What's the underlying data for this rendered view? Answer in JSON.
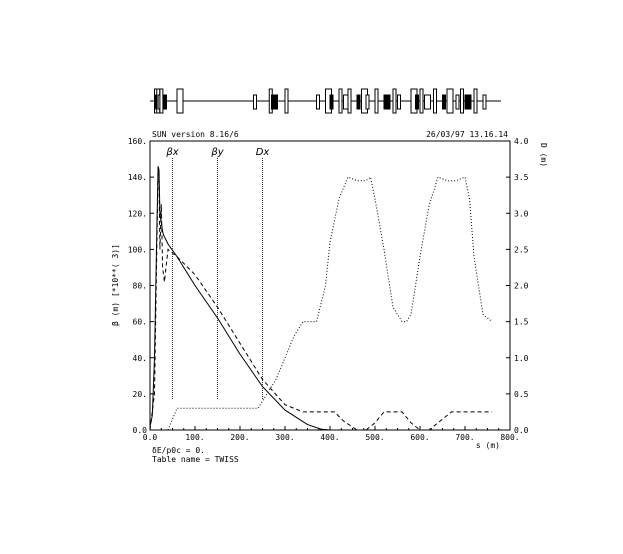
{
  "chart_data": {
    "type": "line",
    "header_left": "SUN version 8.16/6",
    "header_right": "26/03/97  13.16.14",
    "xlabel": "s (m)",
    "xlim": [
      0,
      800
    ],
    "x_ticks": [
      "0.0",
      "100.",
      "200.",
      "300.",
      "400.",
      "500.",
      "600.",
      "700.",
      "800."
    ],
    "ylabel_left": "β (m)   [*10**( 3)]",
    "ylim_left": [
      0,
      160
    ],
    "y_ticks_left": [
      "0.0",
      "20.",
      "40.",
      "60.",
      "80.",
      "100.",
      "120.",
      "140.",
      "160."
    ],
    "ylabel_right": "D (m)",
    "ylim_right": [
      0,
      4.0
    ],
    "y_ticks_right": [
      "0.0",
      "0.5",
      "1.0",
      "1.5",
      "2.0",
      "2.5",
      "3.0",
      "3.5",
      "4.0"
    ],
    "series": [
      {
        "name": "βx",
        "style": "solid",
        "axis": "left",
        "x": [
          0,
          5,
          10,
          15,
          18,
          20,
          22,
          25,
          28,
          30,
          40,
          60,
          100,
          150,
          200,
          250,
          300,
          350,
          380,
          400
        ],
        "y": [
          2,
          8,
          40,
          110,
          146,
          144,
          120,
          115,
          110,
          108,
          103,
          96,
          80,
          62,
          42,
          24,
          11,
          3,
          0.5,
          0
        ]
      },
      {
        "name": "βy",
        "style": "dashed",
        "axis": "left",
        "x": [
          0,
          10,
          15,
          18,
          20,
          22,
          25,
          28,
          32,
          40,
          60,
          100,
          150,
          200,
          250,
          300,
          340,
          360,
          390,
          410,
          430,
          460,
          480,
          500,
          520,
          540,
          560,
          580,
          600,
          620,
          640,
          670,
          690,
          700,
          720,
          740,
          760
        ],
        "y": [
          0,
          20,
          100,
          145,
          140,
          100,
          125,
          90,
          82,
          100,
          96,
          86,
          68,
          48,
          28,
          14,
          10,
          10,
          10,
          10,
          5,
          0,
          0,
          4,
          10,
          10,
          10,
          4,
          0,
          0,
          4,
          10,
          10,
          10,
          10,
          10,
          10
        ]
      },
      {
        "name": "Dx",
        "style": "dotted",
        "axis": "right",
        "x": [
          0,
          40,
          60,
          100,
          150,
          200,
          240,
          250,
          280,
          300,
          320,
          340,
          360,
          370,
          390,
          400,
          420,
          440,
          460,
          480,
          490,
          500,
          520,
          540,
          560,
          570,
          580,
          600,
          620,
          640,
          660,
          680,
          700,
          710,
          720,
          740,
          760
        ],
        "y": [
          0,
          0,
          0.3,
          0.3,
          0.3,
          0.3,
          0.3,
          0.4,
          0.7,
          1.0,
          1.3,
          1.5,
          1.5,
          1.5,
          2.0,
          2.6,
          3.2,
          3.5,
          3.45,
          3.45,
          3.5,
          3.2,
          2.5,
          1.7,
          1.5,
          1.5,
          1.6,
          2.4,
          3.1,
          3.5,
          3.45,
          3.45,
          3.5,
          3.2,
          2.4,
          1.6,
          1.5
        ]
      }
    ],
    "curve_labels": [
      {
        "text": "βx",
        "x": 50
      },
      {
        "text": "βy",
        "x": 150
      },
      {
        "text": "Dx",
        "x": 250
      }
    ],
    "footer_line1": "δE/p0c = 0.",
    "footer_line2": "Table name = TWISS",
    "lattice_bar": {
      "elements_x": [
        10,
        12,
        15,
        18,
        22,
        30,
        60,
        230,
        265,
        270,
        300,
        370,
        390,
        400,
        420,
        430,
        440,
        460,
        470,
        480,
        500,
        520,
        540,
        550,
        580,
        590,
        600,
        610,
        630,
        650,
        660,
        680,
        690,
        700,
        720,
        740
      ]
    }
  }
}
